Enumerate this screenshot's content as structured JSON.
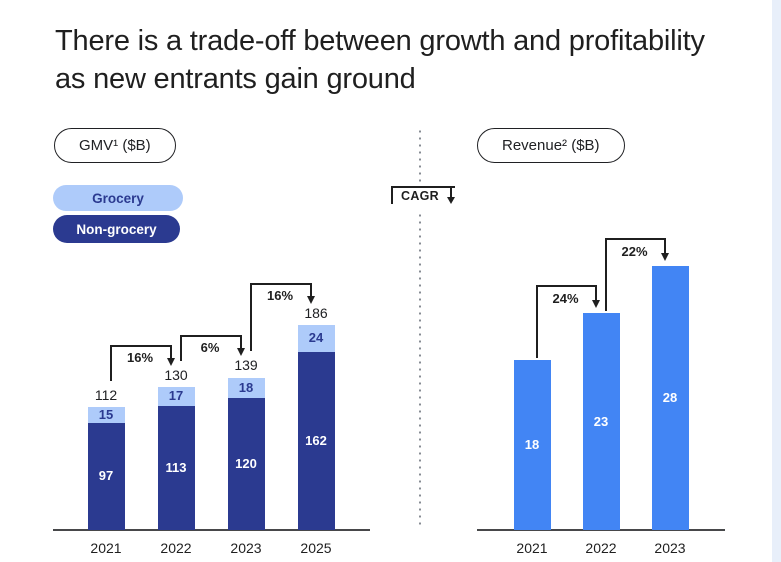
{
  "title": "There is a trade-off between growth and profitability as new entrants gain ground",
  "colors": {
    "grocery": "#AECBFA",
    "non_grocery": "#2B3A90",
    "revenue_bar": "#4285F4",
    "line_dark": "#1f1f1f",
    "axis": "#47484a"
  },
  "legend": {
    "grocery_label": "Grocery",
    "non_grocery_label": "Non-grocery"
  },
  "divider": {
    "cagr_label": "CAGR"
  },
  "chart_data": [
    {
      "type": "bar",
      "variant": "stacked",
      "title": "GMV¹ ($B)",
      "unit": "$B",
      "categories": [
        "2021",
        "2022",
        "2023",
        "2025"
      ],
      "series": [
        {
          "name": "Non-grocery",
          "values": [
            97,
            113,
            120,
            162
          ],
          "color": "#2B3A90",
          "label_color": "#ffffff"
        },
        {
          "name": "Grocery",
          "values": [
            15,
            17,
            18,
            24
          ],
          "color": "#AECBFA",
          "label_color": "#2B3A90"
        }
      ],
      "totals": [
        112,
        130,
        139,
        186
      ],
      "cagr_arrows": [
        {
          "from": "2021",
          "to": "2022",
          "label": "16%"
        },
        {
          "from": "2022",
          "to": "2023",
          "label": "6%"
        },
        {
          "from": "2023",
          "to": "2025",
          "label": "16%"
        }
      ],
      "value_labels_inside": true,
      "grid": false,
      "legend_position": "top-left",
      "ylim": [
        0,
        200
      ]
    },
    {
      "type": "bar",
      "variant": "simple",
      "title": "Revenue² ($B)",
      "unit": "$B",
      "categories": [
        "2021",
        "2022",
        "2023"
      ],
      "values": [
        18,
        23,
        28
      ],
      "color": "#4285F4",
      "label_color": "#ffffff",
      "cagr_arrows": [
        {
          "from": "2021",
          "to": "2022",
          "label": "24%"
        },
        {
          "from": "2022",
          "to": "2023",
          "label": "22%"
        }
      ],
      "value_labels_inside": true,
      "grid": false,
      "ylim": [
        0,
        30
      ]
    }
  ]
}
